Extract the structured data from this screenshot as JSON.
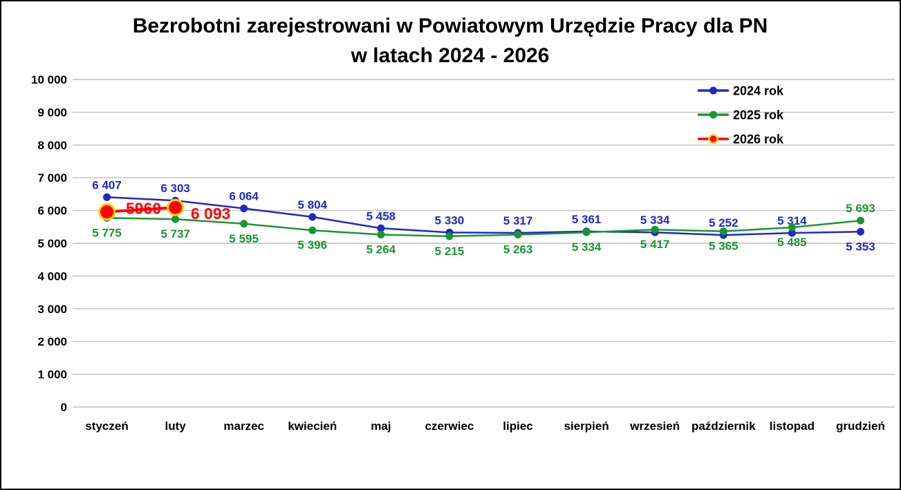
{
  "header": {
    "title_line1": "Bezrobotni zarejestrowani w Powiatowym Urzędzie Pracy dla PN",
    "title_line2": "w latach 2024 - 2026"
  },
  "chart_data": {
    "type": "line",
    "title": "Bezrobotni zarejestrowani w Powiatowym Urzędzie Pracy dla PN w latach 2024 - 2026",
    "categories": [
      "styczeń",
      "luty",
      "marzec",
      "kwiecień",
      "maj",
      "czerwiec",
      "lipiec",
      "sierpień",
      "wrzesień",
      "październik",
      "listopad",
      "grudzień"
    ],
    "ylim": [
      0,
      10000
    ],
    "ytick_labels": [
      "0",
      "1 000",
      "2 000",
      "3 000",
      "4 000",
      "5 000",
      "6 000",
      "7 000",
      "8 000",
      "9 000",
      "10 000"
    ],
    "grid": true,
    "legend_position": "top-right",
    "series": [
      {
        "name": "2024 rok",
        "color": "#1E28C8",
        "marker": "circle",
        "values": [
          6407,
          6303,
          6064,
          5804,
          5458,
          5330,
          5317,
          5361,
          5334,
          5252,
          5314,
          5353
        ],
        "labels": [
          "6 407",
          "6 303",
          "6 064",
          "5 804",
          "5 458",
          "5 330",
          "5 317",
          "5 361",
          "5 334",
          "5 252",
          "5 314",
          "5 353"
        ],
        "label_positions": [
          "above",
          "above",
          "above",
          "above",
          "above",
          "above",
          "above",
          "above",
          "above",
          "above",
          "above",
          "below"
        ]
      },
      {
        "name": "2025 rok",
        "color": "#199632",
        "marker": "circle",
        "values": [
          5775,
          5737,
          5595,
          5396,
          5264,
          5215,
          5263,
          5334,
          5417,
          5365,
          5485,
          5693
        ],
        "labels": [
          "5 775",
          "5 737",
          "5 595",
          "5 396",
          "5 264",
          "5 215",
          "5 263",
          "5 334",
          "5 417",
          "5 365",
          "5 485",
          "5 693"
        ],
        "label_positions": [
          "below",
          "below",
          "below",
          "below",
          "below",
          "below",
          "below",
          "below",
          "below",
          "below",
          "below",
          "above"
        ]
      },
      {
        "name": "2026 rok",
        "color": "#FF0000",
        "marker": "circle-ring",
        "marker_ring_color": "#FFD400",
        "values": [
          5960,
          6093,
          null,
          null,
          null,
          null,
          null,
          null,
          null,
          null,
          null,
          null
        ],
        "labels": [
          "5960",
          "6 093",
          null,
          null,
          null,
          null,
          null,
          null,
          null,
          null,
          null,
          null
        ],
        "label_positions": [
          "right",
          "right-below",
          null,
          null,
          null,
          null,
          null,
          null,
          null,
          null,
          null,
          null
        ]
      }
    ]
  }
}
